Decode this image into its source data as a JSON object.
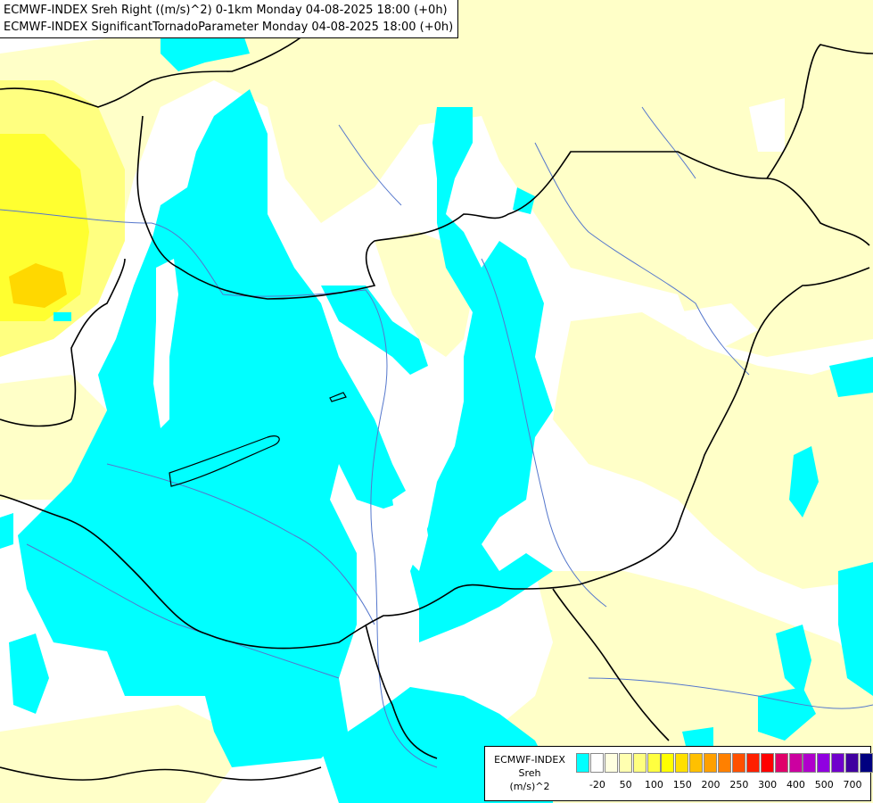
{
  "titles": {
    "line1": "ECMWF-INDEX Sreh Right ((m/s)^2) 0-1km Monday 04-08-2025 18:00 (+0h)",
    "line2": "ECMWF-INDEX SignificantTornadoParameter Monday 04-08-2025 18:00 (+0h)"
  },
  "colors": {
    "cyan": "#00ffff",
    "light_yellow": "#ffffc8",
    "yellow": "#ffff00",
    "mid_yellow": "#ffff80",
    "dark_yellow": "#ffd700",
    "border": "#000000",
    "river": "#5577cc"
  },
  "legend": {
    "source": "ECMWF-INDEX",
    "name": "Sreh",
    "unit": "(m/s)^2",
    "swatch_colors": [
      "#00ffff",
      "#ffffff",
      "#ffffe0",
      "#ffffb0",
      "#ffff80",
      "#ffff40",
      "#ffff00",
      "#ffe000",
      "#ffc000",
      "#ffa000",
      "#ff8000",
      "#ff5000",
      "#ff2000",
      "#ff0000",
      "#e0006a",
      "#cc00a0",
      "#b000cc",
      "#9000e0",
      "#7000cc",
      "#4000a0",
      "#000080"
    ],
    "ticks": [
      "-20",
      "50",
      "100",
      "150",
      "200",
      "250",
      "300",
      "400",
      "500",
      "700"
    ]
  }
}
